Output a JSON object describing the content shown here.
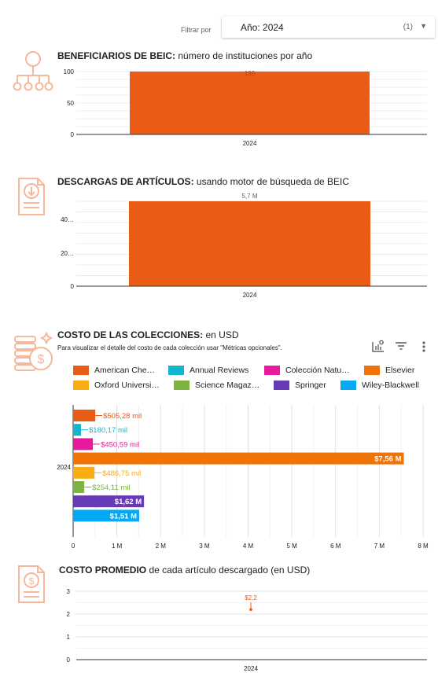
{
  "filter": {
    "label": "Filtrar por",
    "field": "Año",
    "value": "2024",
    "count": "(1)"
  },
  "sections": {
    "beneficiarios": {
      "title_bold": "BENEFICIARIOS DE BEIC:",
      "title_rest": " número de instituciones por año"
    },
    "descargas": {
      "title_bold": "DESCARGAS DE ARTÍCULOS:",
      "title_rest": " usando motor de búsqueda de BEIC"
    },
    "costo": {
      "title_bold": "COSTO DE LAS COLECCIONES:",
      "title_rest": " en USD",
      "note": "Para visualizar el detalle del costo de cada colección usar \"Métricas opcionales\"."
    },
    "promedio": {
      "title_bold": "COSTO PROMEDIO",
      "title_rest": " de cada artículo descargado (en USD)"
    }
  },
  "colors": {
    "accent": "#ea5c16",
    "icon": "#f6b79a",
    "grid": "#e0e0e0"
  },
  "icons": [
    "hierarchy-icon",
    "download-document-icon",
    "money-coins-icon",
    "money-document-icon",
    "chart-settings-icon",
    "filter-icon",
    "more-vertical-icon"
  ],
  "chart_data": [
    {
      "type": "bar",
      "categories": [
        "2024"
      ],
      "values": [
        100
      ],
      "data_labels": [
        "100"
      ],
      "yticks": [
        "0",
        "50",
        "100"
      ],
      "ylim": [
        0,
        100
      ],
      "xlabel": "",
      "ylabel": "",
      "color": "#ea5c16"
    },
    {
      "type": "bar",
      "categories": [
        "2024"
      ],
      "values": [
        5700000
      ],
      "data_labels": [
        "5,7 M"
      ],
      "yticks": [
        "0",
        "20…",
        "40…"
      ],
      "ylim": [
        0,
        5700000
      ],
      "xlabel": "",
      "ylabel": "",
      "color": "#ea5c16"
    },
    {
      "type": "bar",
      "orientation": "horizontal",
      "categories": [
        "2024"
      ],
      "xlim": [
        0,
        8000000
      ],
      "xticks": [
        "0",
        "1 M",
        "2 M",
        "3 M",
        "4 M",
        "5 M",
        "6 M",
        "7 M",
        "8 M"
      ],
      "legend_position": "top",
      "series": [
        {
          "name": "American Che…",
          "value": 505280,
          "label": "$505,28 mil",
          "color": "#ea5c16",
          "label_inside": false
        },
        {
          "name": "Annual Reviews",
          "value": 180170,
          "label": "$180,17 mil",
          "color": "#12b5cb",
          "label_inside": false
        },
        {
          "name": "Colección Natu…",
          "value": 450590,
          "label": "$450,59 mil",
          "color": "#e8199c",
          "label_inside": false
        },
        {
          "name": "Elsevier",
          "value": 7560000,
          "label": "$7,56 M",
          "color": "#f07308",
          "label_inside": true
        },
        {
          "name": "Oxford Universi…",
          "value": 486750,
          "label": "$486,75 mil",
          "color": "#fbab14",
          "label_inside": false
        },
        {
          "name": "Science Magaz…",
          "value": 254110,
          "label": "$254,11 mil",
          "color": "#7cb342",
          "label_inside": false
        },
        {
          "name": "Springer",
          "value": 1620000,
          "label": "$1,62 M",
          "color": "#673ab7",
          "label_inside": true
        },
        {
          "name": "Wiley-Blackwell",
          "value": 1510000,
          "label": "$1,51 M",
          "color": "#03a9f4",
          "label_inside": true
        }
      ]
    },
    {
      "type": "line",
      "categories": [
        "2024"
      ],
      "values": [
        2.2
      ],
      "data_labels": [
        "$2,2"
      ],
      "yticks": [
        "0",
        "1",
        "2",
        "3"
      ],
      "ylim": [
        0,
        3
      ],
      "xlabel": "",
      "ylabel": "",
      "color": "#ea5c16"
    }
  ]
}
